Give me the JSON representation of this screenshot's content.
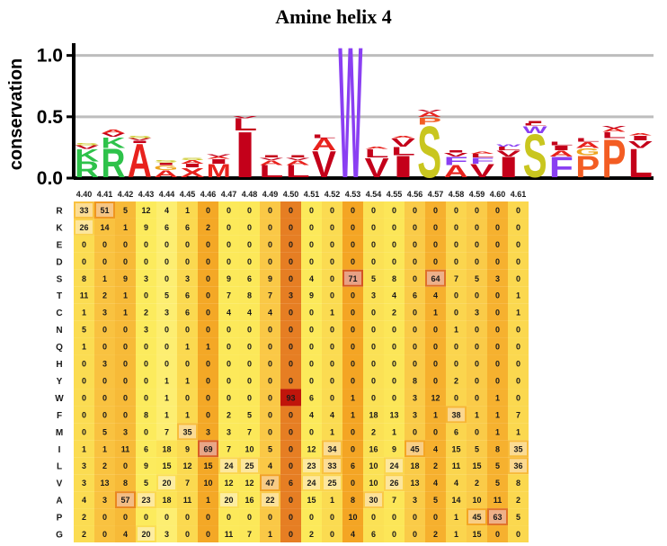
{
  "title": "Amine helix 4",
  "chart_data": [
    {
      "type": "sequence-logo",
      "ylabel": "conservation",
      "ylim": [
        0,
        1.1
      ],
      "yticks": [
        "0.0",
        "0.5",
        "1.0"
      ],
      "grid": true,
      "positions": [
        "4.40",
        "4.41",
        "4.42",
        "4.43",
        "4.44",
        "4.45",
        "4.46",
        "4.47",
        "4.48",
        "4.49",
        "4.50",
        "4.51",
        "4.52",
        "4.53",
        "4.54",
        "4.55",
        "4.56",
        "4.57",
        "4.58",
        "4.59",
        "4.60",
        "4.61"
      ],
      "stacks": [
        [
          {
            "aa": "R",
            "h": 0.13
          },
          {
            "aa": "K",
            "h": 0.1
          },
          {
            "aa": "V",
            "h": 0.03
          },
          {
            "aa": "S",
            "h": 0.02
          }
        ],
        [
          {
            "aa": "R",
            "h": 0.24
          },
          {
            "aa": "K",
            "h": 0.09
          },
          {
            "aa": "V",
            "h": 0.03
          },
          {
            "aa": "A",
            "h": 0.03
          }
        ],
        [
          {
            "aa": "A",
            "h": 0.28
          },
          {
            "aa": "I",
            "h": 0.02
          },
          {
            "aa": "V",
            "h": 0.02
          },
          {
            "aa": "S",
            "h": 0.02
          }
        ],
        [
          {
            "aa": "A",
            "h": 0.06
          },
          {
            "aa": "G",
            "h": 0.04
          },
          {
            "aa": "I",
            "h": 0.02
          },
          {
            "aa": "S",
            "h": 0.02
          }
        ],
        [
          {
            "aa": "X",
            "h": 0.08
          },
          {
            "aa": "I",
            "h": 0.03
          },
          {
            "aa": "A",
            "h": 0.03
          },
          {
            "aa": "S",
            "h": 0.02
          }
        ],
        [
          {
            "aa": "M",
            "h": 0.11
          },
          {
            "aa": "I",
            "h": 0.04
          },
          {
            "aa": "A",
            "h": 0.02
          },
          {
            "aa": "V",
            "h": 0.02
          }
        ],
        [
          {
            "aa": "I",
            "h": 0.38
          },
          {
            "aa": "L",
            "h": 0.1
          },
          {
            "aa": "V",
            "h": 0.02
          }
        ],
        [
          {
            "aa": "L",
            "h": 0.1
          },
          {
            "aa": "A",
            "h": 0.04
          },
          {
            "aa": "V",
            "h": 0.02
          },
          {
            "aa": "I",
            "h": 0.02
          }
        ],
        [
          {
            "aa": "L",
            "h": 0.1
          },
          {
            "aa": "A",
            "h": 0.04
          },
          {
            "aa": "V",
            "h": 0.02
          },
          {
            "aa": "I",
            "h": 0.02
          }
        ],
        [
          {
            "aa": "V",
            "h": 0.22
          },
          {
            "aa": "A",
            "h": 0.1
          },
          {
            "aa": "L",
            "h": 0.03
          }
        ],
        [
          {
            "aa": "W",
            "h": 1.1
          },
          {
            "aa": "V",
            "h": 0.05
          }
        ],
        [
          {
            "aa": "V",
            "h": 0.16
          },
          {
            "aa": "L",
            "h": 0.07
          },
          {
            "aa": "A",
            "h": 0.02
          }
        ],
        [
          {
            "aa": "I",
            "h": 0.18
          },
          {
            "aa": "L",
            "h": 0.07
          },
          {
            "aa": "V",
            "h": 0.07
          },
          {
            "aa": "A",
            "h": 0.02
          }
        ],
        [
          {
            "aa": "S",
            "h": 0.43
          },
          {
            "aa": "P",
            "h": 0.06
          },
          {
            "aa": "A",
            "h": 0.04
          },
          {
            "aa": "V",
            "h": 0.02
          }
        ],
        [
          {
            "aa": "A",
            "h": 0.1
          },
          {
            "aa": "F",
            "h": 0.07
          },
          {
            "aa": "V",
            "h": 0.03
          },
          {
            "aa": "I",
            "h": 0.02
          }
        ],
        [
          {
            "aa": "V",
            "h": 0.11
          },
          {
            "aa": "F",
            "h": 0.05
          },
          {
            "aa": "L",
            "h": 0.03
          },
          {
            "aa": "A",
            "h": 0.02
          }
        ],
        [
          {
            "aa": "I",
            "h": 0.17
          },
          {
            "aa": "V",
            "h": 0.05
          },
          {
            "aa": "L",
            "h": 0.03
          },
          {
            "aa": "W",
            "h": 0.02
          }
        ],
        [
          {
            "aa": "S",
            "h": 0.36
          },
          {
            "aa": "W",
            "h": 0.06
          },
          {
            "aa": "L",
            "h": 0.02
          },
          {
            "aa": "I",
            "h": 0.02
          }
        ],
        [
          {
            "aa": "F",
            "h": 0.17
          },
          {
            "aa": "A",
            "h": 0.05
          },
          {
            "aa": "I",
            "h": 0.04
          },
          {
            "aa": "L",
            "h": 0.03
          }
        ],
        [
          {
            "aa": "P",
            "h": 0.18
          },
          {
            "aa": "G",
            "h": 0.06
          },
          {
            "aa": "A",
            "h": 0.05
          },
          {
            "aa": "L",
            "h": 0.03
          }
        ],
        [
          {
            "aa": "P",
            "h": 0.32
          },
          {
            "aa": "L",
            "h": 0.05
          },
          {
            "aa": "A",
            "h": 0.03
          },
          {
            "aa": "V",
            "h": 0.02
          }
        ],
        [
          {
            "aa": "L",
            "h": 0.24
          },
          {
            "aa": "V",
            "h": 0.06
          },
          {
            "aa": "I",
            "h": 0.04
          },
          {
            "aa": "A",
            "h": 0.02
          }
        ]
      ],
      "aa_colors": {
        "R": "#2ec24a",
        "K": "#2ec24a",
        "H": "#2ec24a",
        "A": "#e8221d",
        "V": "#c4001a",
        "L": "#c4001a",
        "I": "#c4001a",
        "M": "#e8221d",
        "W": "#8a3ff2",
        "F": "#8a3ff2",
        "Y": "#8a3ff2",
        "S": "#c9c61f",
        "T": "#c9c61f",
        "G": "#eda41e",
        "P": "#f35d23",
        "N": "#9c5bdb",
        "Q": "#9c5bdb",
        "E": "#e8221d",
        "D": "#e8221d",
        "C": "#e8c21e",
        "X": "#e8221d"
      }
    },
    {
      "type": "heatmap",
      "columns": [
        "4.40",
        "4.41",
        "4.42",
        "4.43",
        "4.44",
        "4.45",
        "4.46",
        "4.47",
        "4.48",
        "4.49",
        "4.50",
        "4.51",
        "4.52",
        "4.53",
        "4.54",
        "4.55",
        "4.56",
        "4.57",
        "4.58",
        "4.59",
        "4.60",
        "4.61"
      ],
      "rows": [
        "R",
        "K",
        "E",
        "D",
        "S",
        "T",
        "C",
        "N",
        "Q",
        "H",
        "Y",
        "W",
        "F",
        "M",
        "I",
        "L",
        "V",
        "A",
        "P",
        "G"
      ],
      "values": [
        [
          33,
          51,
          5,
          12,
          4,
          1,
          0,
          0,
          0,
          0,
          0,
          0,
          0,
          0,
          0,
          0,
          0,
          0,
          0,
          0,
          0,
          0
        ],
        [
          26,
          14,
          1,
          9,
          6,
          6,
          2,
          0,
          0,
          0,
          0,
          0,
          0,
          0,
          0,
          0,
          0,
          0,
          0,
          0,
          0,
          0
        ],
        [
          0,
          0,
          0,
          0,
          0,
          0,
          0,
          0,
          0,
          0,
          0,
          0,
          0,
          0,
          0,
          0,
          0,
          0,
          0,
          0,
          0,
          0
        ],
        [
          0,
          0,
          0,
          0,
          0,
          0,
          0,
          0,
          0,
          0,
          0,
          0,
          0,
          0,
          0,
          0,
          0,
          0,
          0,
          0,
          0,
          0
        ],
        [
          8,
          1,
          9,
          3,
          0,
          3,
          0,
          9,
          6,
          9,
          0,
          4,
          0,
          71,
          5,
          8,
          0,
          64,
          7,
          5,
          3,
          0
        ],
        [
          11,
          2,
          1,
          0,
          5,
          6,
          0,
          7,
          8,
          7,
          3,
          9,
          0,
          0,
          3,
          4,
          6,
          4,
          0,
          0,
          0,
          1
        ],
        [
          1,
          3,
          1,
          2,
          3,
          6,
          0,
          4,
          4,
          4,
          0,
          0,
          1,
          0,
          0,
          2,
          0,
          1,
          0,
          3,
          0,
          1
        ],
        [
          5,
          0,
          0,
          3,
          0,
          0,
          0,
          0,
          0,
          0,
          0,
          0,
          0,
          0,
          0,
          0,
          0,
          0,
          1,
          0,
          0,
          0
        ],
        [
          1,
          0,
          0,
          0,
          0,
          1,
          1,
          0,
          0,
          0,
          0,
          0,
          0,
          0,
          0,
          0,
          0,
          0,
          0,
          0,
          0,
          0
        ],
        [
          0,
          3,
          0,
          0,
          0,
          0,
          0,
          0,
          0,
          0,
          0,
          0,
          0,
          0,
          0,
          0,
          0,
          0,
          0,
          0,
          0,
          0
        ],
        [
          0,
          0,
          0,
          0,
          1,
          1,
          0,
          0,
          0,
          0,
          0,
          0,
          0,
          0,
          0,
          0,
          8,
          0,
          2,
          0,
          0,
          0
        ],
        [
          0,
          0,
          0,
          0,
          1,
          0,
          0,
          0,
          0,
          0,
          93,
          6,
          0,
          1,
          0,
          0,
          3,
          12,
          0,
          0,
          1,
          0
        ],
        [
          0,
          0,
          0,
          8,
          1,
          1,
          0,
          2,
          5,
          0,
          0,
          4,
          4,
          1,
          18,
          13,
          3,
          1,
          38,
          1,
          1,
          7
        ],
        [
          0,
          5,
          3,
          0,
          7,
          35,
          3,
          3,
          7,
          0,
          0,
          0,
          1,
          0,
          2,
          1,
          0,
          0,
          6,
          0,
          1,
          1
        ],
        [
          1,
          1,
          11,
          6,
          18,
          9,
          69,
          7,
          10,
          5,
          0,
          12,
          34,
          0,
          16,
          9,
          45,
          4,
          15,
          5,
          8,
          35
        ],
        [
          3,
          2,
          0,
          9,
          15,
          12,
          15,
          24,
          25,
          4,
          0,
          23,
          33,
          6,
          10,
          24,
          18,
          2,
          11,
          15,
          5,
          36
        ],
        [
          3,
          13,
          8,
          5,
          20,
          7,
          10,
          12,
          12,
          47,
          6,
          24,
          25,
          0,
          10,
          26,
          13,
          4,
          4,
          2,
          5,
          8
        ],
        [
          4,
          3,
          57,
          23,
          18,
          11,
          1,
          20,
          16,
          22,
          0,
          15,
          1,
          8,
          30,
          7,
          3,
          5,
          14,
          10,
          11,
          2
        ],
        [
          2,
          0,
          0,
          0,
          0,
          0,
          0,
          0,
          0,
          0,
          0,
          0,
          0,
          10,
          0,
          0,
          0,
          0,
          1,
          45,
          63,
          5
        ],
        [
          2,
          0,
          4,
          20,
          3,
          0,
          0,
          11,
          7,
          1,
          0,
          2,
          0,
          4,
          6,
          0,
          0,
          2,
          1,
          15,
          0,
          0
        ]
      ]
    }
  ]
}
